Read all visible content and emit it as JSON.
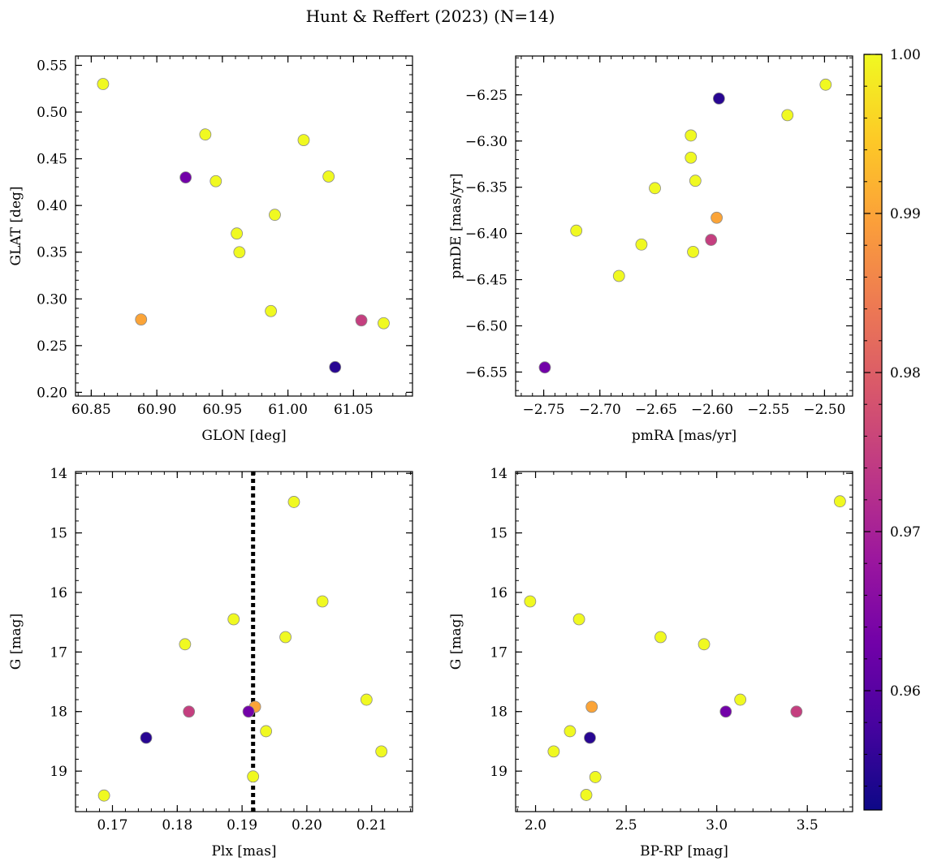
{
  "figure": {
    "title": "Hunt & Reffert (2023) (N=14)",
    "marker_edge_color": "#8a8a8a",
    "ref_line_color": "#000000"
  },
  "colorbar": {
    "vmin": 0.9525,
    "vmax": 1.0,
    "ticks": [
      0.96,
      0.97,
      0.98,
      0.99,
      1.0
    ],
    "tick_labels": [
      "0.96",
      "0.97",
      "0.98",
      "0.99",
      "1.00"
    ],
    "colormap": "plasma",
    "stops": [
      "#0d0887",
      "#46039f",
      "#7201a8",
      "#9c179e",
      "#bd3786",
      "#d8576b",
      "#ed7953",
      "#fb9f3a",
      "#fdca26",
      "#f0f921"
    ]
  },
  "chart_data": [
    {
      "type": "scatter",
      "id": "glon-glat",
      "xlabel": "GLON [deg]",
      "ylabel": "GLAT [deg]",
      "xlim": [
        60.838,
        61.095
      ],
      "ylim": [
        0.196,
        0.56
      ],
      "x_ticks": [
        60.85,
        60.9,
        60.95,
        61.0,
        61.05
      ],
      "x_tick_labels": [
        "60.85",
        "60.90",
        "60.95",
        "61.00",
        "61.05"
      ],
      "x_minor_step": 0.01,
      "y_ticks": [
        0.2,
        0.25,
        0.3,
        0.35,
        0.4,
        0.45,
        0.5,
        0.55
      ],
      "y_tick_labels": [
        "0.20",
        "0.25",
        "0.30",
        "0.35",
        "0.40",
        "0.45",
        "0.50",
        "0.55"
      ],
      "y_minor_step": 0.01,
      "y_inverted": false,
      "points": [
        {
          "x": 60.859,
          "y": 0.53,
          "c": 1.0
        },
        {
          "x": 60.937,
          "y": 0.476,
          "c": 1.0
        },
        {
          "x": 61.012,
          "y": 0.47,
          "c": 1.0
        },
        {
          "x": 61.031,
          "y": 0.431,
          "c": 1.0
        },
        {
          "x": 60.922,
          "y": 0.43,
          "c": 0.963
        },
        {
          "x": 60.945,
          "y": 0.426,
          "c": 1.0
        },
        {
          "x": 60.99,
          "y": 0.39,
          "c": 1.0
        },
        {
          "x": 60.961,
          "y": 0.37,
          "c": 1.0
        },
        {
          "x": 60.963,
          "y": 0.35,
          "c": 1.0
        },
        {
          "x": 60.987,
          "y": 0.287,
          "c": 1.0
        },
        {
          "x": 60.888,
          "y": 0.278,
          "c": 0.99
        },
        {
          "x": 61.056,
          "y": 0.277,
          "c": 0.975
        },
        {
          "x": 61.073,
          "y": 0.274,
          "c": 1.0
        },
        {
          "x": 61.036,
          "y": 0.227,
          "c": 0.955
        }
      ]
    },
    {
      "type": "scatter",
      "id": "pmra-pmde",
      "xlabel": "pmRA [mas/yr]",
      "ylabel": "pmDE [mas/yr]",
      "xlim": [
        -2.775,
        -2.475
      ],
      "ylim": [
        -6.576,
        -6.208
      ],
      "x_ticks": [
        -2.75,
        -2.7,
        -2.65,
        -2.6,
        -2.55,
        -2.5
      ],
      "x_tick_labels": [
        "−2.75",
        "−2.70",
        "−2.65",
        "−2.60",
        "−2.55",
        "−2.50"
      ],
      "x_minor_step": 0.01,
      "y_ticks": [
        -6.55,
        -6.5,
        -6.45,
        -6.4,
        -6.35,
        -6.3,
        -6.25
      ],
      "y_tick_labels": [
        "−6.55",
        "−6.50",
        "−6.45",
        "−6.40",
        "−6.35",
        "−6.30",
        "−6.25"
      ],
      "y_minor_step": 0.01,
      "y_inverted": false,
      "points": [
        {
          "x": -2.499,
          "y": -6.239,
          "c": 1.0
        },
        {
          "x": -2.594,
          "y": -6.254,
          "c": 0.955
        },
        {
          "x": -2.533,
          "y": -6.272,
          "c": 1.0
        },
        {
          "x": -2.619,
          "y": -6.294,
          "c": 1.0
        },
        {
          "x": -2.619,
          "y": -6.318,
          "c": 1.0
        },
        {
          "x": -2.615,
          "y": -6.343,
          "c": 1.0
        },
        {
          "x": -2.651,
          "y": -6.351,
          "c": 1.0
        },
        {
          "x": -2.596,
          "y": -6.383,
          "c": 0.99
        },
        {
          "x": -2.721,
          "y": -6.397,
          "c": 1.0
        },
        {
          "x": -2.601,
          "y": -6.407,
          "c": 0.975
        },
        {
          "x": -2.663,
          "y": -6.412,
          "c": 1.0
        },
        {
          "x": -2.617,
          "y": -6.42,
          "c": 1.0
        },
        {
          "x": -2.683,
          "y": -6.446,
          "c": 1.0
        },
        {
          "x": -2.749,
          "y": -6.545,
          "c": 0.963
        }
      ]
    },
    {
      "type": "scatter",
      "id": "plx-g",
      "xlabel": "Plx [mas]",
      "ylabel": "G [mag]",
      "xlim": [
        0.1643,
        0.2163
      ],
      "ylim": [
        13.97,
        19.68
      ],
      "x_ticks": [
        0.17,
        0.18,
        0.19,
        0.2,
        0.21
      ],
      "x_tick_labels": [
        "0.17",
        "0.18",
        "0.19",
        "0.20",
        "0.21"
      ],
      "x_minor_step": 0.002,
      "y_ticks": [
        14,
        15,
        16,
        17,
        18,
        19
      ],
      "y_tick_labels": [
        "14",
        "15",
        "16",
        "17",
        "18",
        "19"
      ],
      "y_minor_step": 0.2,
      "y_inverted": true,
      "vline": 0.1917,
      "points": [
        {
          "x": 0.198,
          "y": 14.48,
          "c": 1.0
        },
        {
          "x": 0.2024,
          "y": 16.15,
          "c": 1.0
        },
        {
          "x": 0.1887,
          "y": 16.45,
          "c": 1.0
        },
        {
          "x": 0.1967,
          "y": 16.75,
          "c": 1.0
        },
        {
          "x": 0.1812,
          "y": 16.87,
          "c": 1.0
        },
        {
          "x": 0.2092,
          "y": 17.8,
          "c": 1.0
        },
        {
          "x": 0.192,
          "y": 17.92,
          "c": 0.99
        },
        {
          "x": 0.1818,
          "y": 18.0,
          "c": 0.975
        },
        {
          "x": 0.191,
          "y": 18.0,
          "c": 0.963
        },
        {
          "x": 0.1937,
          "y": 18.33,
          "c": 1.0
        },
        {
          "x": 0.1752,
          "y": 18.44,
          "c": 0.955
        },
        {
          "x": 0.2115,
          "y": 18.67,
          "c": 1.0
        },
        {
          "x": 0.1917,
          "y": 19.09,
          "c": 1.0
        },
        {
          "x": 0.1687,
          "y": 19.41,
          "c": 1.0
        }
      ]
    },
    {
      "type": "scatter",
      "id": "bprp-g",
      "xlabel": "BP-RP [mag]",
      "ylabel": "G [mag]",
      "xlim": [
        1.89,
        3.75
      ],
      "ylim": [
        13.97,
        19.68
      ],
      "x_ticks": [
        2.0,
        2.5,
        3.0,
        3.5
      ],
      "x_tick_labels": [
        "2.0",
        "2.5",
        "3.0",
        "3.5"
      ],
      "x_minor_step": 0.1,
      "y_ticks": [
        14,
        15,
        16,
        17,
        18,
        19
      ],
      "y_tick_labels": [
        "14",
        "15",
        "16",
        "17",
        "18",
        "19"
      ],
      "y_minor_step": 0.2,
      "y_inverted": true,
      "points": [
        {
          "x": 3.68,
          "y": 14.47,
          "c": 1.0
        },
        {
          "x": 1.97,
          "y": 16.15,
          "c": 1.0
        },
        {
          "x": 2.24,
          "y": 16.45,
          "c": 1.0
        },
        {
          "x": 2.69,
          "y": 16.75,
          "c": 1.0
        },
        {
          "x": 2.93,
          "y": 16.87,
          "c": 1.0
        },
        {
          "x": 3.13,
          "y": 17.8,
          "c": 1.0
        },
        {
          "x": 2.31,
          "y": 17.92,
          "c": 0.99
        },
        {
          "x": 3.05,
          "y": 18.0,
          "c": 0.963
        },
        {
          "x": 3.44,
          "y": 18.0,
          "c": 0.975
        },
        {
          "x": 2.19,
          "y": 18.33,
          "c": 1.0
        },
        {
          "x": 2.3,
          "y": 18.44,
          "c": 0.955
        },
        {
          "x": 2.1,
          "y": 18.67,
          "c": 1.0
        },
        {
          "x": 2.33,
          "y": 19.1,
          "c": 1.0
        },
        {
          "x": 2.28,
          "y": 19.4,
          "c": 1.0
        }
      ]
    }
  ]
}
